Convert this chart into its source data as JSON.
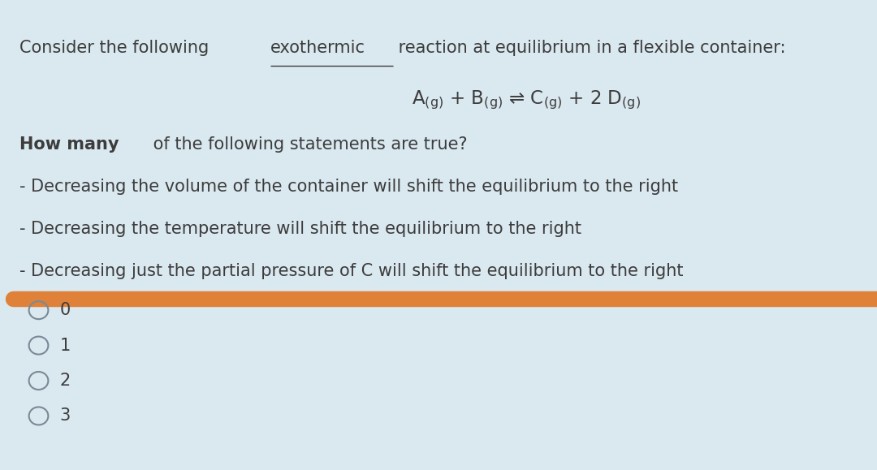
{
  "background_color": "#dae8f0",
  "text_color": "#3c3c3c",
  "pre_exo": "Consider the following ",
  "exo_text": "exothermic",
  "post_exo": " reaction at equilibrium in a flexible container:",
  "how_many_bold": "How many",
  "how_many_rest": " of the following statements are true?",
  "bullet1": "- Decreasing the volume of the container will shift the equilibrium to the right",
  "bullet2": "- Decreasing the temperature will shift the equilibrium to the right",
  "bullet3": "- Decreasing just the partial pressure of C will shift the equilibrium to the right",
  "highlight_color": "#e07828",
  "options": [
    "0",
    "1",
    "2",
    "3"
  ],
  "circle_color": "#7a8a96",
  "font_size_main": 15.0,
  "font_size_eq": 15.5
}
